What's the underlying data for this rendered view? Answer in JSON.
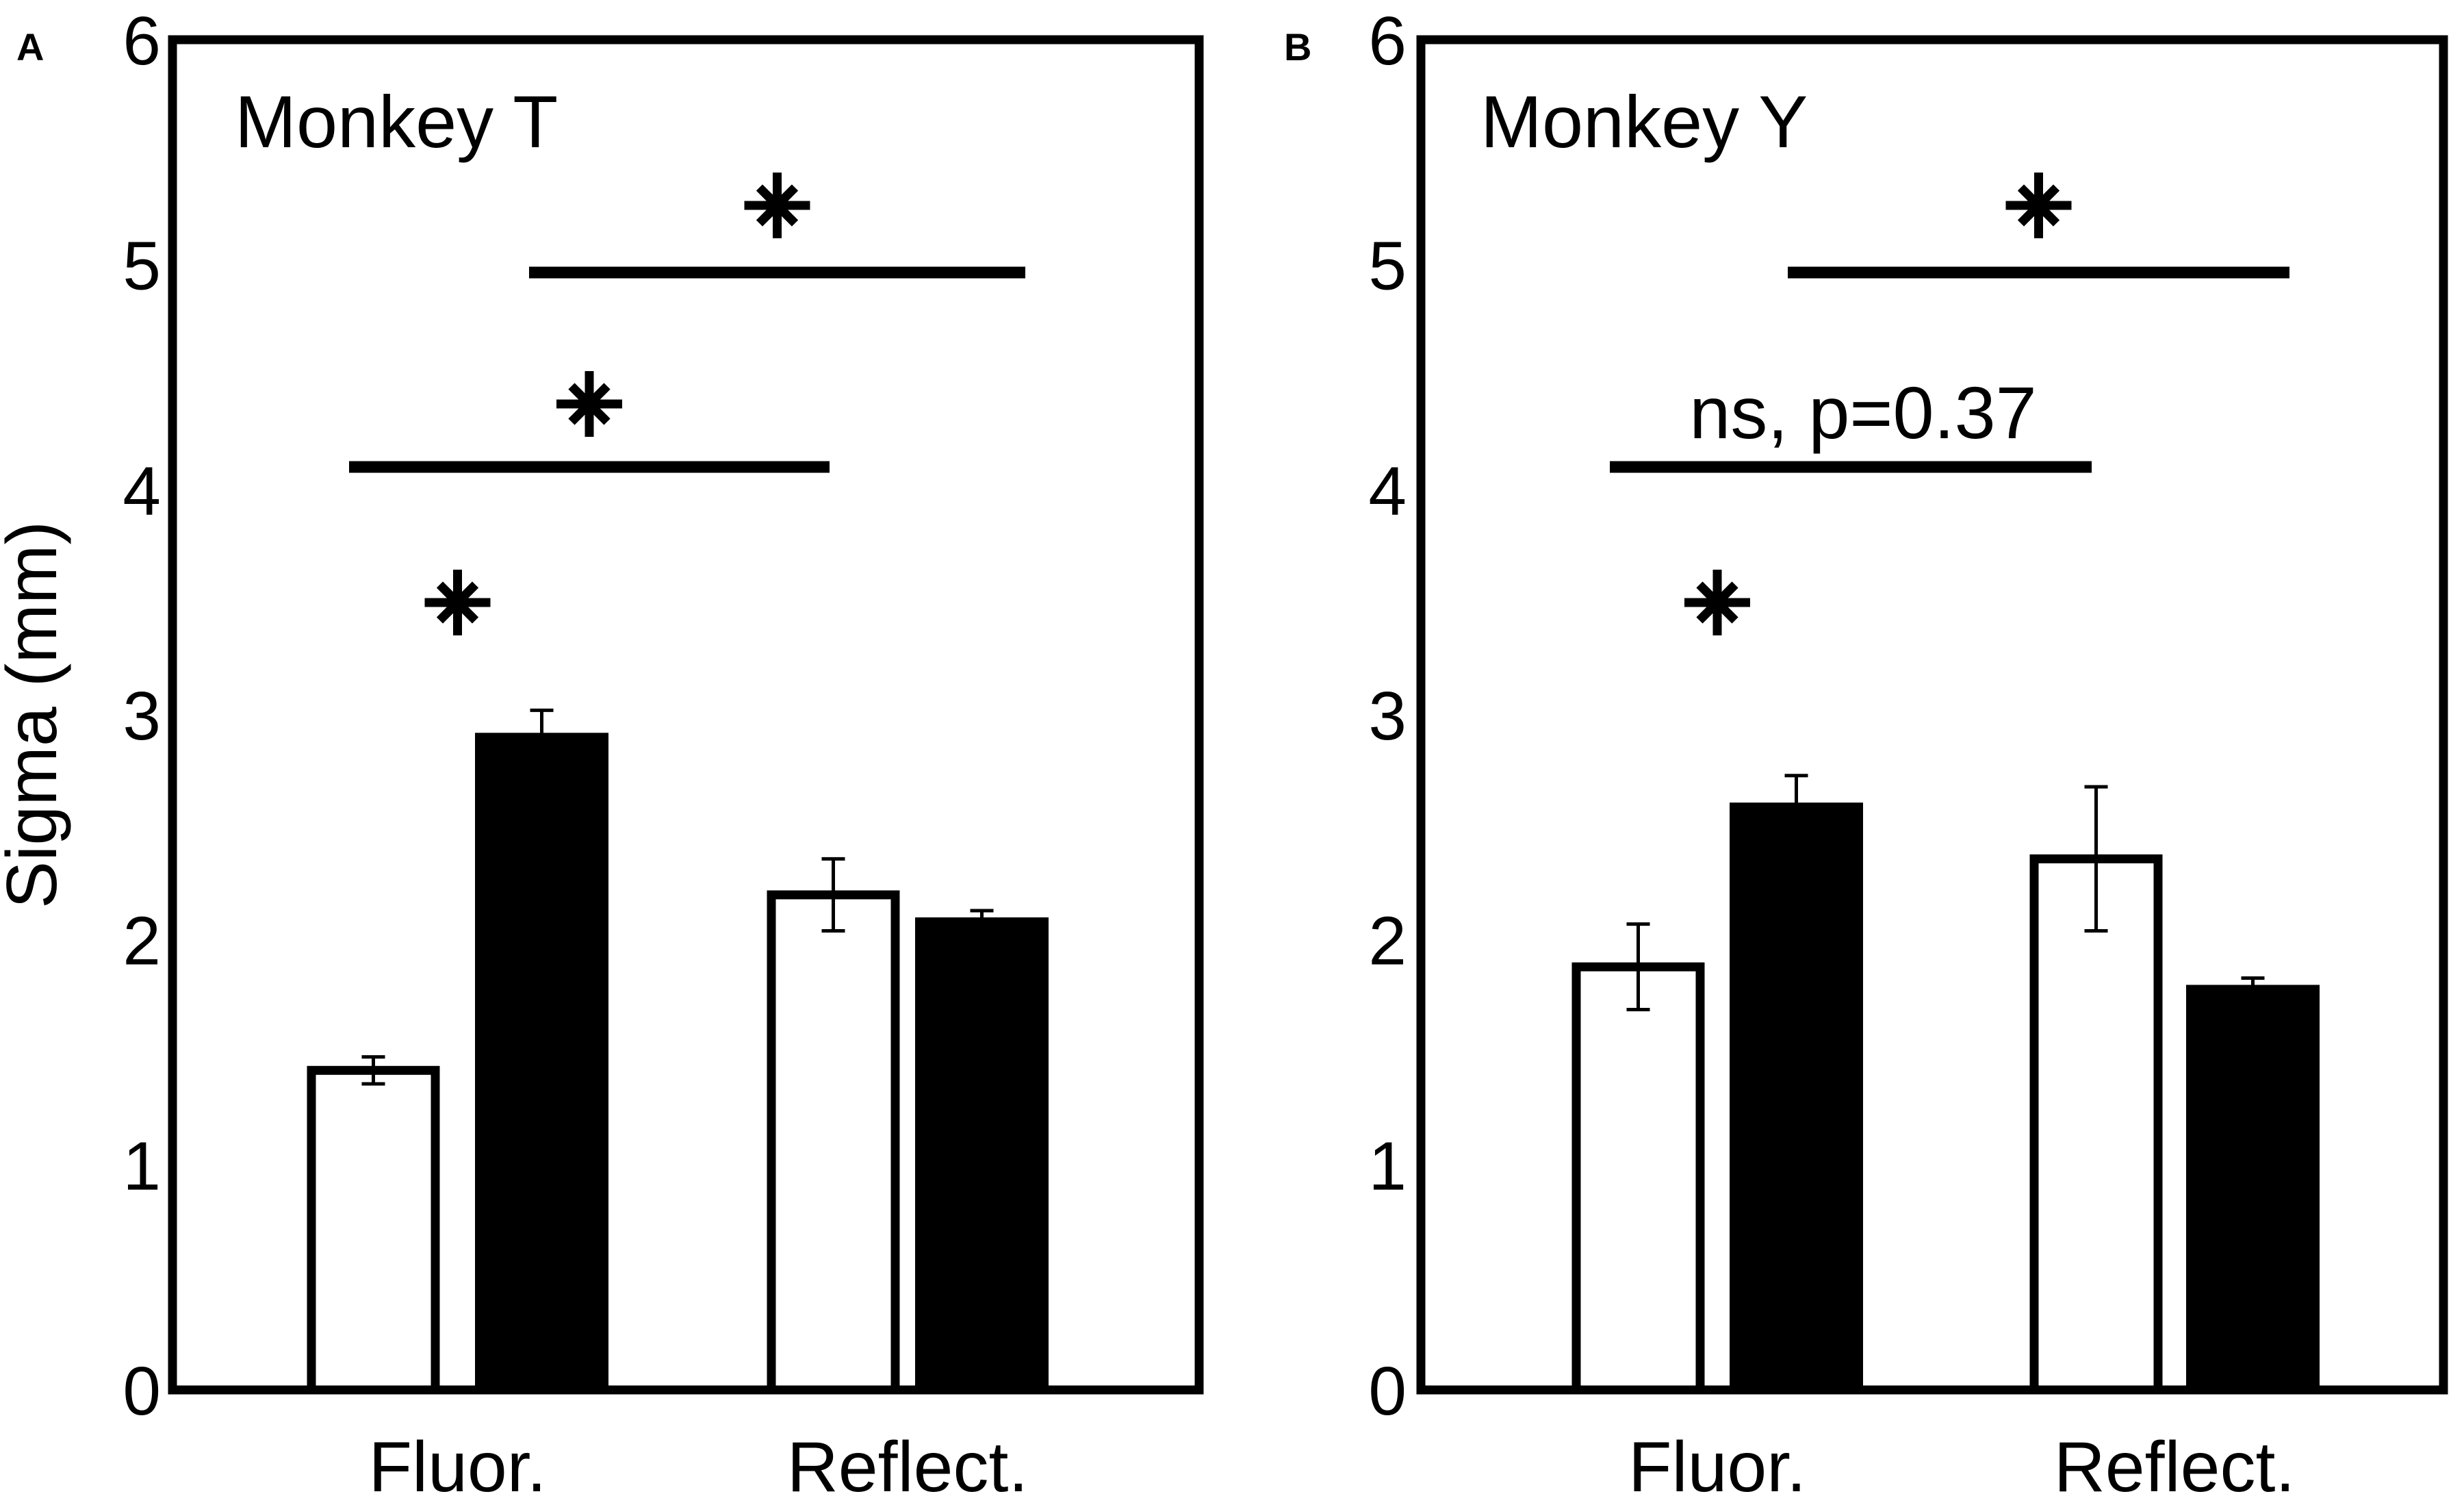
{
  "chart_data": [
    {
      "panel": "A",
      "type": "bar",
      "title": "Monkey T",
      "ylabel": "Sigma (mm)",
      "xlabel": "",
      "ylim": [
        0,
        6
      ],
      "yticks": [
        "0",
        "1",
        "2",
        "3",
        "4",
        "5",
        "6"
      ],
      "categories": [
        "Fluor.",
        "Reflect."
      ],
      "series": [
        {
          "fill": "white",
          "values": [
            1.42,
            2.2
          ],
          "errors": [
            0.06,
            0.16
          ]
        },
        {
          "fill": "black",
          "values": [
            2.92,
            2.1
          ],
          "errors": [
            0.1,
            0.03
          ]
        }
      ],
      "grid": false,
      "annotations": [
        {
          "label": "*",
          "type": "within",
          "category": 0
        },
        {
          "label": "*",
          "type": "bracket",
          "from": "Fluor. white",
          "to": "Reflect. white"
        },
        {
          "label": "*",
          "type": "bracket",
          "from": "Fluor. black",
          "to": "Reflect. black"
        }
      ]
    },
    {
      "panel": "B",
      "type": "bar",
      "title": "Monkey Y",
      "ylabel": "",
      "xlabel": "",
      "ylim": [
        0,
        6
      ],
      "yticks": [
        "0",
        "1",
        "2",
        "3",
        "4",
        "5",
        "6"
      ],
      "categories": [
        "Fluor.",
        "Reflect."
      ],
      "series": [
        {
          "fill": "white",
          "values": [
            1.88,
            2.36
          ],
          "errors": [
            0.19,
            0.32
          ]
        },
        {
          "fill": "black",
          "values": [
            2.61,
            1.8
          ],
          "errors": [
            0.12,
            0.03
          ]
        }
      ],
      "grid": false,
      "annotations": [
        {
          "label": "*",
          "type": "within",
          "category": 0
        },
        {
          "label": "ns, p=0.37",
          "type": "bracket",
          "from": "Fluor. white",
          "to": "Reflect. white"
        },
        {
          "label": "*",
          "type": "bracket",
          "from": "Fluor. black",
          "to": "Reflect. black"
        }
      ]
    }
  ]
}
